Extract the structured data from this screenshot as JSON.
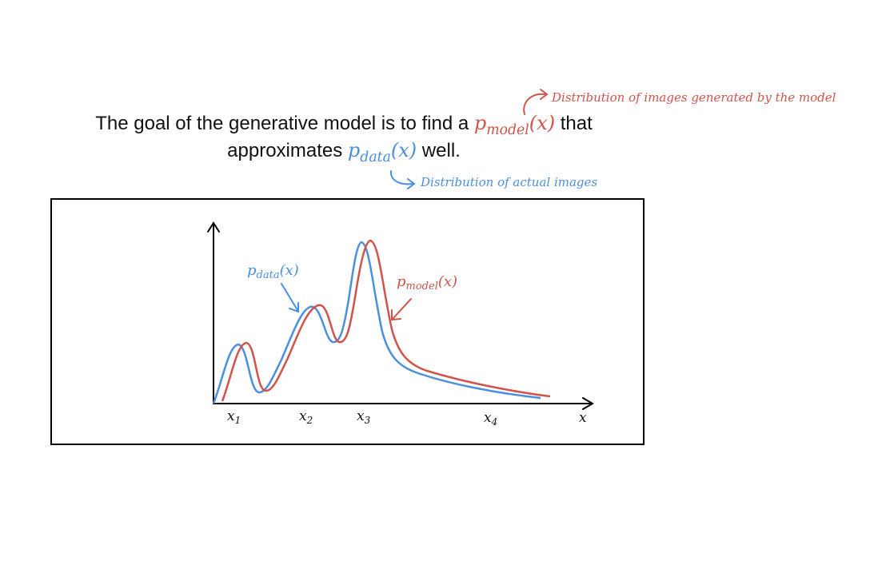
{
  "headline": {
    "part1": "The goal of the generative model is to find a ",
    "model_p": "p",
    "model_sub": "model",
    "model_arg": "(x)",
    "part2": " that",
    "part3": "approximates ",
    "data_p": "p",
    "data_sub": "data",
    "data_arg": "(x)",
    "part4": " well."
  },
  "annotations": {
    "model_note": "Distribution of images generated by the model",
    "data_note": "Distribution of actual images"
  },
  "chart_data": {
    "type": "line",
    "series": [
      {
        "name": "p_data(x)",
        "color": "#4a8fe0"
      },
      {
        "name": "p_model(x)",
        "color": "#d0544a"
      }
    ],
    "labels": {
      "data_p": "p",
      "data_sub": "data",
      "data_arg": "(x)",
      "model_p": "p",
      "model_sub": "model",
      "model_arg": "(x)"
    },
    "x_ticks": [
      {
        "base": "x",
        "sub": "1"
      },
      {
        "base": "x",
        "sub": "2"
      },
      {
        "base": "x",
        "sub": "3"
      },
      {
        "base": "x",
        "sub": "4"
      }
    ],
    "x_axis_label": "x"
  },
  "colors": {
    "model": "#d0544a",
    "data": "#4a8fe0",
    "axis": "#000000"
  }
}
